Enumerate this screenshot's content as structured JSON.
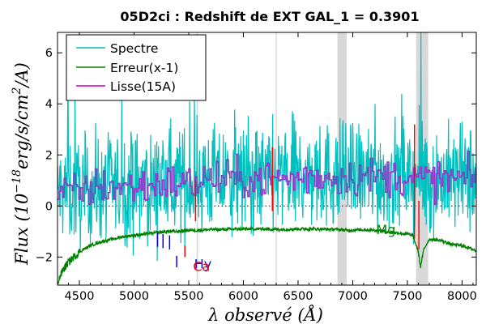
{
  "chart_data": {
    "type": "line",
    "title": "05D2ci : Redshift de EXT GAL_1 = 0.3901",
    "xlabel": "λ observé (Å)",
    "ylabel": "Flux (10^-18 erg/s/cm²/A)",
    "ylabel_parts": {
      "pre": "Flux (10",
      "exp": "−18",
      "post": "erg/s/cm",
      "exp2": "2",
      "post2": "/A)"
    },
    "xlim": [
      4300,
      8130
    ],
    "ylim": [
      -3.1,
      6.8
    ],
    "x_ticks": [
      "4500",
      "5000",
      "5500",
      "6000",
      "6500",
      "7000",
      "7500",
      "8000"
    ],
    "y_ticks": [
      "−2",
      "0",
      "2",
      "4",
      "6"
    ],
    "grid": false,
    "legend_position": "top-left",
    "series": [
      {
        "name": "Spectre",
        "color": "#00bfbf"
      },
      {
        "name": "Erreur(x-1)",
        "color": "#008000"
      },
      {
        "name": "Lisse(15A)",
        "color": "#bf00bf"
      }
    ],
    "colors": {
      "purple_overlay": "#8a3cc8",
      "red_marks": "#ff0000",
      "blue_marks": "#0000ff",
      "band": "#d8d8d8",
      "zero_line": "#000000"
    },
    "error_curve": {
      "x": [
        4300,
        4350,
        4400,
        4450,
        4500,
        4600,
        4700,
        4800,
        4900,
        5000,
        5100,
        5200,
        5300,
        5400,
        5500,
        5600,
        5700,
        5800,
        6000,
        6200,
        6300,
        6500,
        6700,
        6850,
        6950,
        7100,
        7200,
        7300,
        7400,
        7500,
        7550,
        7600,
        7620,
        7650,
        7700,
        7800,
        7900,
        8000,
        8130
      ],
      "y": [
        -3.0,
        -2.5,
        -2.2,
        -2.0,
        -1.8,
        -1.55,
        -1.4,
        -1.3,
        -1.2,
        -1.15,
        -1.1,
        -1.05,
        -1.0,
        -1.0,
        -0.95,
        -0.95,
        -0.92,
        -0.92,
        -0.9,
        -0.9,
        -0.92,
        -0.9,
        -0.9,
        -0.92,
        -0.95,
        -0.93,
        -0.95,
        -1.0,
        -1.05,
        -1.1,
        -1.15,
        -1.8,
        -2.4,
        -1.7,
        -1.3,
        -1.35,
        -1.5,
        -1.55,
        -1.75
      ]
    },
    "shaded_bands": [
      {
        "x0": 5572,
        "x1": 5585
      },
      {
        "x0": 6295,
        "x1": 6305
      },
      {
        "x0": 6860,
        "x1": 6945
      },
      {
        "x0": 7580,
        "x1": 7690
      }
    ],
    "zero_line": {
      "y": 0,
      "style": "dotted"
    },
    "line_markers": [
      {
        "x": 5215,
        "y0": -1.6,
        "y1": -1.05,
        "color": "blue"
      },
      {
        "x": 5265,
        "y0": -1.65,
        "y1": -1.1,
        "color": "blue"
      },
      {
        "x": 5325,
        "y0": -1.7,
        "y1": -1.15,
        "color": "blue"
      },
      {
        "x": 5390,
        "y0": -2.4,
        "y1": -1.95,
        "color": "blue"
      },
      {
        "x": 5465,
        "y0": -2.0,
        "y1": -1.55,
        "color": "red"
      }
    ],
    "annotations": [
      {
        "text": "Hy",
        "x": 5550,
        "y": -2.45,
        "color": "blue"
      },
      {
        "text": "Ca",
        "x": 5540,
        "y": -2.55,
        "color": "red"
      },
      {
        "text": "Mg",
        "x": 7215,
        "y": -1.1,
        "color": "green"
      }
    ]
  }
}
